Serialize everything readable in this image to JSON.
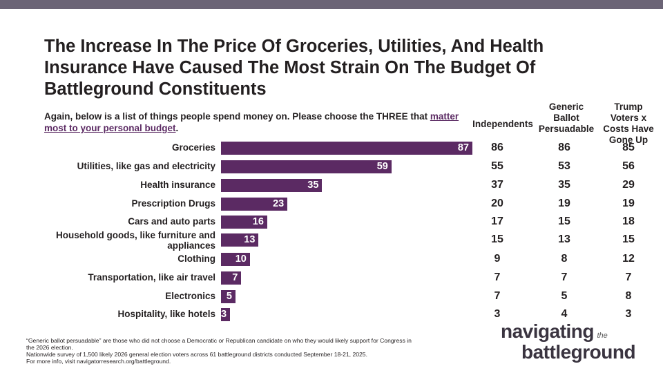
{
  "header": {
    "title": "The Increase In The Price Of Groceries, Utilities, And Health Insurance Have Caused The Most Strain On The Budget Of Battleground Constituents",
    "question_prefix": "Again, below is a list of things people spend money on. Please choose the THREE that ",
    "question_link": "matter most to your personal budget",
    "question_suffix": "."
  },
  "chart_data": {
    "type": "bar",
    "orientation": "horizontal",
    "bar_color": "#5b2a63",
    "categories": [
      "Groceries",
      "Utilities, like gas and electricity",
      "Health insurance",
      "Prescription Drugs",
      "Cars and auto parts",
      "Household goods, like furniture and appliances",
      "Clothing",
      "Transportation, like air travel",
      "Electronics",
      "Hospitality, like hotels"
    ],
    "values": [
      87,
      59,
      35,
      23,
      16,
      13,
      10,
      7,
      5,
      3
    ],
    "table": {
      "columns": [
        "Independents",
        "Generic Ballot Persuadable",
        "Trump Voters x Costs Have Gone Up"
      ],
      "rows": [
        [
          86,
          86,
          85
        ],
        [
          55,
          53,
          56
        ],
        [
          37,
          35,
          29
        ],
        [
          20,
          19,
          19
        ],
        [
          17,
          15,
          18
        ],
        [
          15,
          13,
          15
        ],
        [
          9,
          8,
          12
        ],
        [
          7,
          7,
          7
        ],
        [
          7,
          5,
          8
        ],
        [
          3,
          4,
          3
        ]
      ]
    }
  },
  "footer": {
    "lines": [
      "“Generic ballot persuadable” are those who did not choose a Democratic or Republican candidate on who they would likely support for Congress in the 2026 election.",
      "Nationwide survey of 1,500 likely 2026 general election voters across 61 battleground districts conducted September 18-21, 2025.",
      "For more info, visit navigatorresearch.org/battleground."
    ]
  },
  "logo": {
    "line1": "navigating",
    "the": "the",
    "line2": "battleground"
  }
}
